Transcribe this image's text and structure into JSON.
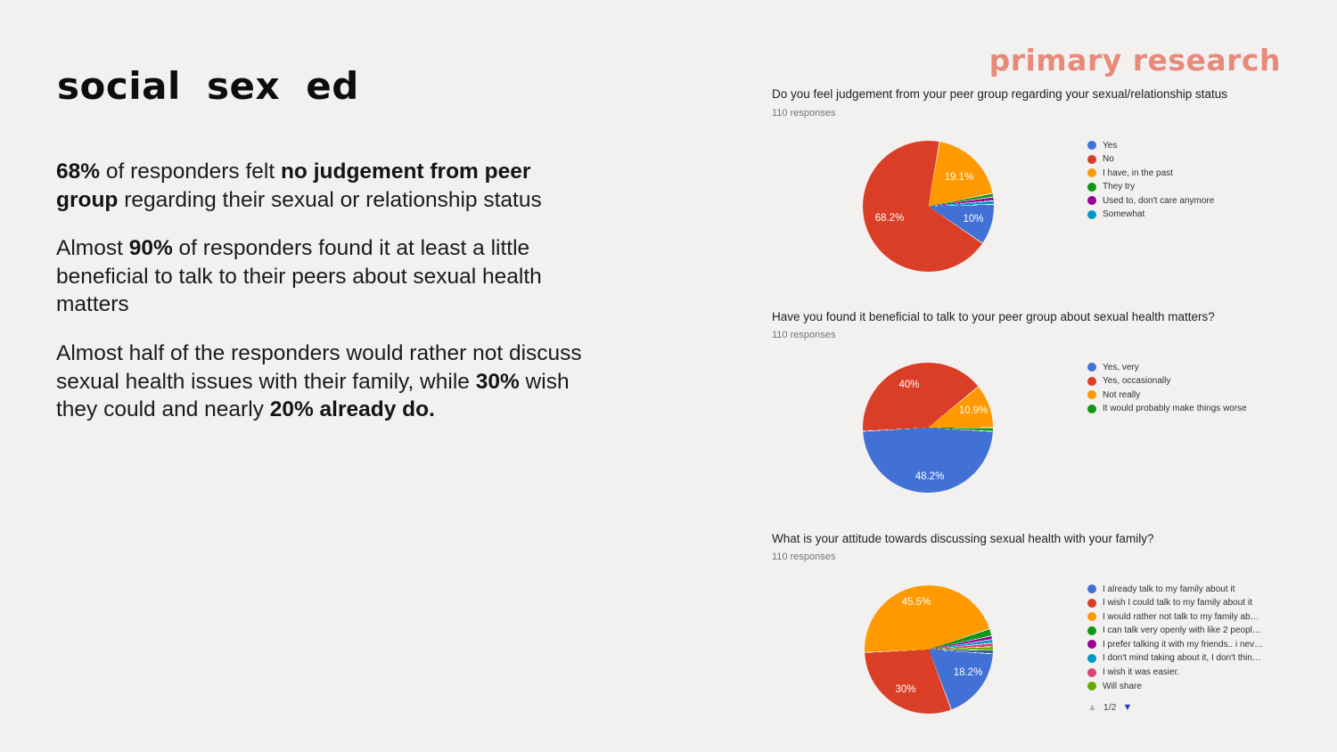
{
  "slide": {
    "background_color": "#F2F1F0",
    "title": "social sex ed",
    "section_header": "primary research",
    "accent_color": "#E8897A",
    "paragraphs": {
      "p1": {
        "s1": "68%",
        "s2": " of responders felt ",
        "s3": "no judgement from peer",
        "s4": "group",
        "s5": " regarding their sexual or relationship status"
      },
      "p2": {
        "s1": "Almost ",
        "s2": "90%",
        "s3": " of responders found it at least a little",
        "s4": "beneficial to talk to their peers about sexual health",
        "s5": "matters"
      },
      "p3": {
        "s1": "Almost half of the responders would rather not discuss",
        "s2": "sexual health issues with their family, while ",
        "s3": "30%",
        "s4": " wish",
        "s5": "they could and nearly ",
        "s6": "20% already do."
      }
    }
  },
  "chart_data": [
    {
      "type": "pie",
      "title": "Do you feel judgement from your peer group regarding your sexual/relationship status",
      "responses_label": "110 responses",
      "total_responses": 110,
      "legend_position": "right",
      "start_angle": 88,
      "slices": [
        {
          "label": "Yes",
          "pct": 10.0,
          "color": "#4171D6",
          "pie_label": "10%"
        },
        {
          "label": "No",
          "pct": 68.2,
          "color": "#DB3E26",
          "pie_label": "68.2%"
        },
        {
          "label": "I have, in the past",
          "pct": 19.1,
          "color": "#FF9900",
          "pie_label": "19.1%"
        },
        {
          "label": "They try",
          "pct": 0.9,
          "color": "#109618"
        },
        {
          "label": "Used to, don't care anymore",
          "pct": 0.9,
          "color": "#990099"
        },
        {
          "label": "Somewhat",
          "pct": 0.9,
          "color": "#0099C6"
        }
      ]
    },
    {
      "type": "pie",
      "title": "Have you found it beneficial to talk to your peer group about sexual health matters?",
      "responses_label": "110 responses",
      "total_responses": 110,
      "legend_position": "right",
      "start_angle": 93,
      "slices": [
        {
          "label": "Yes, very",
          "pct": 48.2,
          "color": "#4171D6",
          "pie_label": "48.2%"
        },
        {
          "label": "Yes, occasionally",
          "pct": 40.0,
          "color": "#DB3E26",
          "pie_label": "40%"
        },
        {
          "label": "Not really",
          "pct": 10.9,
          "color": "#FF9900",
          "pie_label": "10.9%"
        },
        {
          "label": "It would probably make things worse",
          "pct": 0.9,
          "color": "#109618"
        }
      ]
    },
    {
      "type": "pie",
      "title": "What is your attitude towards discussing sexual health with your family?",
      "responses_label": "110 responses",
      "total_responses": 110,
      "legend_position": "right",
      "start_angle": 93.5,
      "pagination": "1/2",
      "slices": [
        {
          "label": "I already talk to my family about it",
          "pct": 18.2,
          "color": "#4171D6",
          "pie_label": "18.2%"
        },
        {
          "label": "I wish I could talk to my family about it",
          "pct": 30.0,
          "color": "#DB3E26",
          "pie_label": "30%"
        },
        {
          "label": "I would rather not talk to my family ab…",
          "pct": 45.5,
          "color": "#FF9900",
          "pie_label": "45.5%"
        },
        {
          "label": "I can talk very openly with like 2 peopl…",
          "pct": 1.8,
          "color": "#109618"
        },
        {
          "label": "I prefer talking it with my friends.. i nev…",
          "pct": 0.9,
          "color": "#990099"
        },
        {
          "label": "I don't mind taking about it, I don't thin…",
          "pct": 0.9,
          "color": "#0099C6"
        },
        {
          "label": "I wish it was easier.",
          "pct": 0.9,
          "color": "#DD4477"
        },
        {
          "label": "Will share",
          "pct": 0.9,
          "color": "#66AA00"
        },
        {
          "label": "",
          "pct": 0.9,
          "color": "#316395"
        }
      ]
    }
  ]
}
